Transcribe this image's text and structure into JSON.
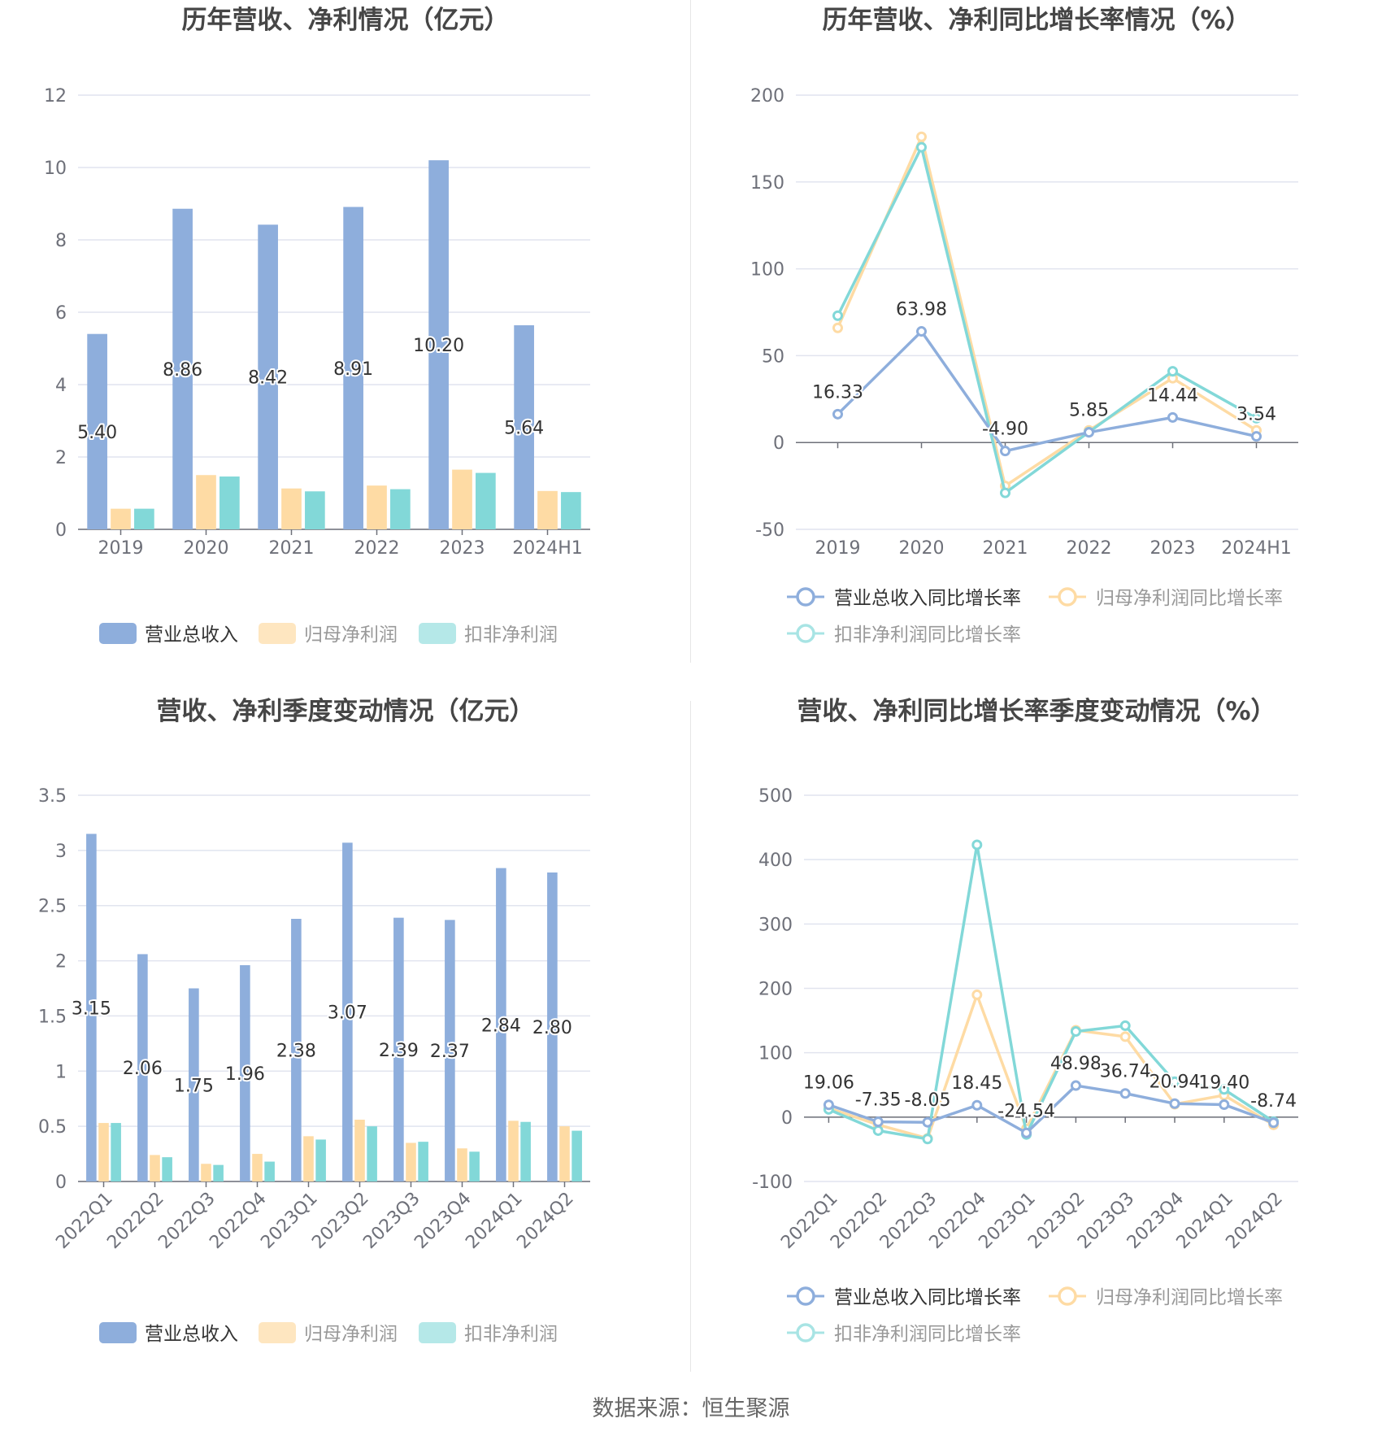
{
  "footer": "数据来源：恒生聚源",
  "colors": {
    "revenue": "#8eaedc",
    "net": "#fedba4",
    "deducted": "#82d8d8",
    "grid": "#e1e4ef",
    "axis": "#6e7079",
    "title": "#464646"
  },
  "chart_data": [
    {
      "type": "bar",
      "title": "历年营收、净利情况（亿元）",
      "categories": [
        "2019",
        "2020",
        "2021",
        "2022",
        "2023",
        "2024H1"
      ],
      "ylim": [
        0,
        12
      ],
      "yticks": [
        0,
        2,
        4,
        6,
        8,
        10,
        12
      ],
      "series": [
        {
          "name": "营业总收入",
          "values": [
            5.4,
            8.86,
            8.42,
            8.91,
            10.2,
            5.64
          ]
        },
        {
          "name": "归母净利润",
          "values": [
            0.57,
            1.5,
            1.13,
            1.21,
            1.65,
            1.06
          ]
        },
        {
          "name": "扣非净利润",
          "values": [
            0.57,
            1.46,
            1.05,
            1.11,
            1.56,
            1.03
          ]
        }
      ],
      "data_labels": [
        "5.40",
        "8.86",
        "8.42",
        "8.91",
        "10.20",
        "5.64"
      ],
      "grid": true,
      "legend": "bottom"
    },
    {
      "type": "line",
      "title": "历年营收、净利同比增长率情况（%）",
      "categories": [
        "2019",
        "2020",
        "2021",
        "2022",
        "2023",
        "2024H1"
      ],
      "ylim": [
        -50,
        200
      ],
      "yticks": [
        -50,
        0,
        50,
        100,
        150,
        200
      ],
      "series": [
        {
          "name": "营业总收入同比增长率",
          "values": [
            16.33,
            63.98,
            -4.9,
            5.85,
            14.44,
            3.54
          ]
        },
        {
          "name": "归母净利润同比增长率",
          "values": [
            66,
            176,
            -25,
            7,
            37,
            7
          ]
        },
        {
          "name": "扣非净利润同比增长率",
          "values": [
            73,
            170,
            -29,
            6,
            41,
            14
          ]
        }
      ],
      "data_labels": [
        "16.33",
        "63.98",
        "-4.90",
        "5.85",
        "14.44",
        "3.54"
      ],
      "grid": true,
      "legend": "bottom"
    },
    {
      "type": "bar",
      "title": "营收、净利季度变动情况（亿元）",
      "categories": [
        "2022Q1",
        "2022Q2",
        "2022Q3",
        "2022Q4",
        "2023Q1",
        "2023Q2",
        "2023Q3",
        "2023Q4",
        "2024Q1",
        "2024Q2"
      ],
      "ylim": [
        0,
        3.5
      ],
      "yticks": [
        "0",
        "0.5",
        "1",
        "1.5",
        "2",
        "2.5",
        "3",
        "3.5"
      ],
      "series": [
        {
          "name": "营业总收入",
          "values": [
            3.15,
            2.06,
            1.75,
            1.96,
            2.38,
            3.07,
            2.39,
            2.37,
            2.84,
            2.8
          ]
        },
        {
          "name": "归母净利润",
          "values": [
            0.53,
            0.24,
            0.16,
            0.25,
            0.41,
            0.56,
            0.35,
            0.3,
            0.55,
            0.5
          ]
        },
        {
          "name": "扣非净利润",
          "values": [
            0.53,
            0.22,
            0.15,
            0.18,
            0.38,
            0.5,
            0.36,
            0.27,
            0.54,
            0.46
          ]
        }
      ],
      "data_labels": [
        "3.15",
        "2.06",
        "1.75",
        "1.96",
        "2.38",
        "3.07",
        "2.39",
        "2.37",
        "2.84",
        "2.80"
      ],
      "grid": true,
      "legend": "bottom"
    },
    {
      "type": "line",
      "title": "营收、净利同比增长率季度变动情况（%）",
      "categories": [
        "2022Q1",
        "2022Q2",
        "2022Q3",
        "2022Q4",
        "2023Q1",
        "2023Q2",
        "2023Q3",
        "2023Q4",
        "2024Q1",
        "2024Q2"
      ],
      "ylim": [
        -100,
        500
      ],
      "yticks": [
        -100,
        0,
        100,
        200,
        300,
        400,
        500
      ],
      "series": [
        {
          "name": "营业总收入同比增长率",
          "values": [
            19.06,
            -7.35,
            -8.05,
            18.45,
            -24.54,
            48.98,
            36.74,
            20.94,
            19.4,
            -8.74
          ]
        },
        {
          "name": "归母净利润同比增长率",
          "values": [
            14,
            -12,
            -33,
            190,
            -18,
            135,
            125,
            20,
            34,
            -12
          ]
        },
        {
          "name": "扣非净利润同比增长率",
          "values": [
            12,
            -21,
            -34,
            423,
            -27,
            133,
            142,
            55,
            43,
            -7
          ]
        }
      ],
      "data_labels": [
        "19.06",
        "-7.35",
        "-8.05",
        "18.45",
        "-24.54",
        "48.98",
        "36.74",
        "20.94",
        "19.40",
        "-8.74"
      ],
      "grid": true,
      "legend": "bottom"
    }
  ]
}
